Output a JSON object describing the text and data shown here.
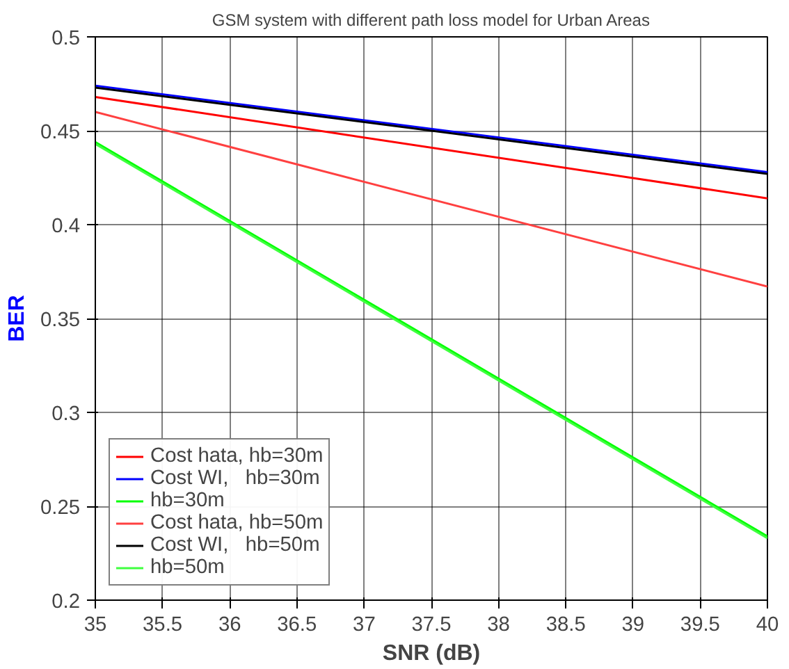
{
  "chart_data": {
    "type": "line",
    "title": "GSM system with different path loss model for Urban Areas",
    "xlabel": "SNR (dB)",
    "ylabel": "BER",
    "xlim": [
      35,
      40
    ],
    "ylim": [
      0.2,
      0.5
    ],
    "xticks": [
      35,
      35.5,
      36,
      36.5,
      37,
      37.5,
      38,
      38.5,
      39,
      39.5,
      40
    ],
    "yticks": [
      0.2,
      0.25,
      0.3,
      0.35,
      0.4,
      0.45,
      0.5
    ],
    "grid": true,
    "legend": "bottom left",
    "marker": "none",
    "line_style": "solid",
    "x": [
      35,
      40
    ],
    "series": [
      {
        "name": "Cost hata, hb=30m",
        "color": "#ff0000",
        "values": [
          0.468,
          0.414
        ]
      },
      {
        "name": "Cost WI,   hb=30m",
        "color": "#0000ff",
        "values": [
          0.474,
          0.428
        ]
      },
      {
        "name": "hb=30m",
        "color": "#00ff00",
        "values": [
          0.444,
          0.234
        ]
      },
      {
        "name": "Cost hata, hb=50m",
        "color": "#ff4040",
        "values": [
          0.46,
          0.367
        ]
      },
      {
        "name": "Cost WI,   hb=50m",
        "color": "#000000",
        "values": [
          0.473,
          0.427
        ]
      },
      {
        "name": "hb=50m",
        "color": "#40ff40",
        "values": [
          0.443,
          0.233
        ]
      }
    ]
  }
}
